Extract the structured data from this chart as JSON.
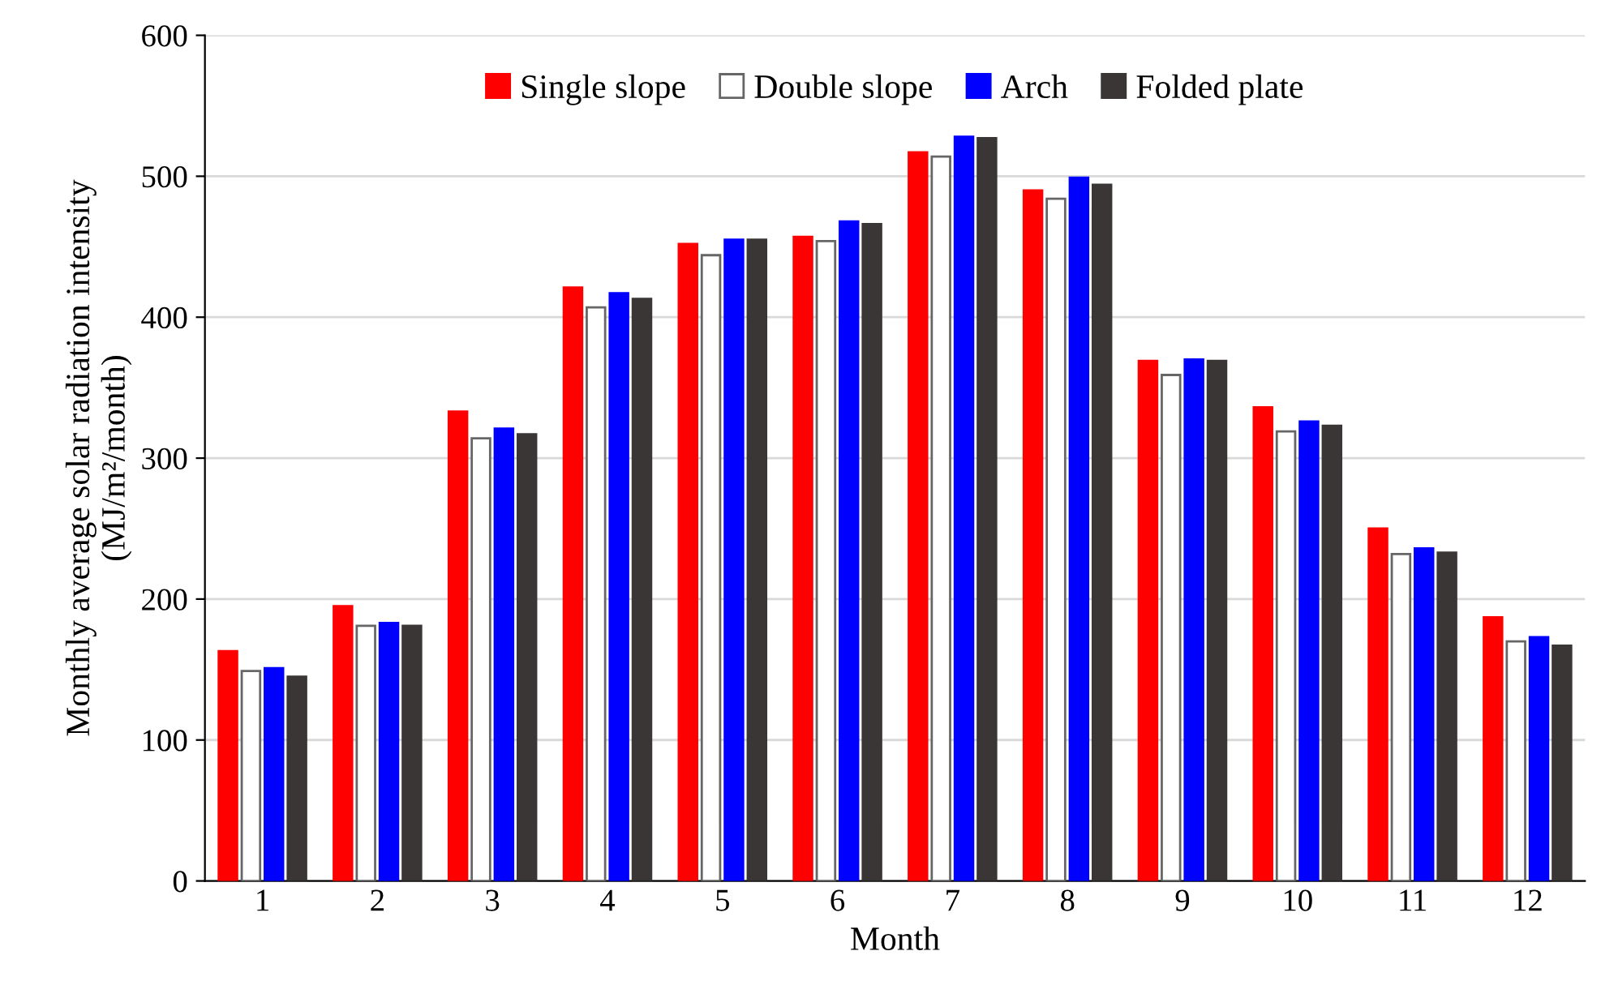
{
  "chart_data": {
    "type": "bar",
    "xlabel": "Month",
    "ylabel": "Monthly average solar radiation intensity\n(MJ/m²/month)",
    "categories": [
      "1",
      "2",
      "3",
      "4",
      "5",
      "6",
      "7",
      "8",
      "9",
      "10",
      "11",
      "12"
    ],
    "series": [
      {
        "name": "Single slope",
        "color": "#ff0000",
        "values": [
          163,
          195,
          333,
          421,
          452,
          457,
          517,
          490,
          369,
          336,
          250,
          187
        ]
      },
      {
        "name": "Double slope",
        "color": "#ffffff",
        "values": [
          149,
          181,
          314,
          407,
          444,
          454,
          514,
          484,
          359,
          319,
          232,
          170
        ]
      },
      {
        "name": "Arch",
        "color": "#0000ff",
        "values": [
          151,
          183,
          321,
          417,
          455,
          468,
          528,
          499,
          370,
          326,
          236,
          173
        ]
      },
      {
        "name": "Folded plate",
        "color": "#3a3636",
        "values": [
          145,
          181,
          317,
          413,
          455,
          466,
          527,
          494,
          369,
          323,
          233,
          167
        ]
      }
    ],
    "ylim": [
      0,
      600
    ],
    "yticks": [
      0,
      100,
      200,
      300,
      400,
      500,
      600
    ],
    "grid": "y",
    "legend": "top"
  }
}
